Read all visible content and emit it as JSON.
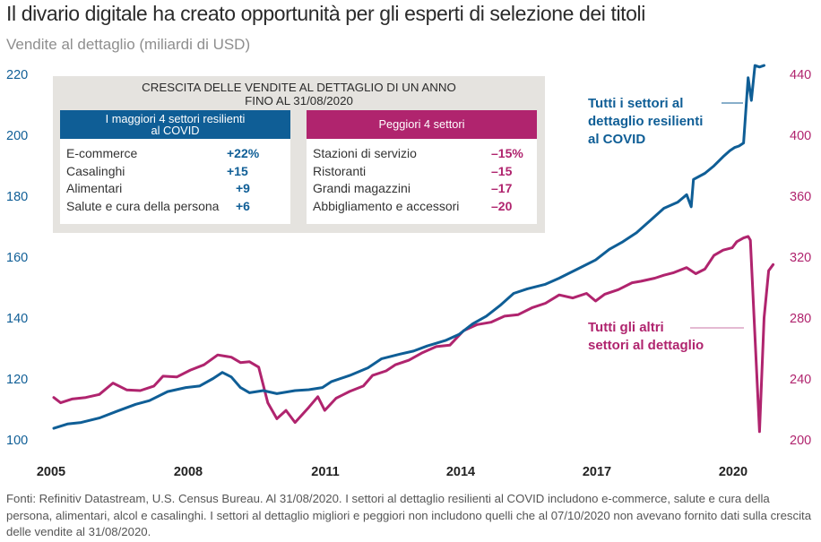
{
  "chart_data": {
    "type": "line",
    "title": "Il divario digitale ha creato opportunità per gli esperti di selezione dei titoli",
    "subtitle": "Vendite al dettaglio (miliardi di USD)",
    "xlabel": "",
    "x_ticks": [
      "2005",
      "2008",
      "2011",
      "2014",
      "2017",
      "2020"
    ],
    "x_range": [
      2005,
      2020.7
    ],
    "y_left": {
      "ticks": [
        "100",
        "120",
        "140",
        "160",
        "180",
        "200",
        "220"
      ],
      "range": [
        100,
        220
      ],
      "color": "#0f5e96"
    },
    "y_right": {
      "ticks": [
        "200",
        "240",
        "280",
        "320",
        "360",
        "400",
        "440"
      ],
      "range": [
        200,
        440
      ],
      "color": "#b0246e"
    },
    "grid": false,
    "series": [
      {
        "name": "Tutti i settori al dettaglio resilienti al COVID",
        "axis": "left",
        "color": "#0f5e96",
        "points": [
          [
            2005.0,
            104.1
          ],
          [
            2005.3,
            105.5
          ],
          [
            2005.6,
            106.0
          ],
          [
            2006.0,
            107.5
          ],
          [
            2006.4,
            109.8
          ],
          [
            2006.8,
            112.0
          ],
          [
            2007.1,
            113.2
          ],
          [
            2007.5,
            116.2
          ],
          [
            2007.9,
            117.5
          ],
          [
            2008.2,
            118.0
          ],
          [
            2008.5,
            120.5
          ],
          [
            2008.7,
            122.5
          ],
          [
            2008.9,
            121.0
          ],
          [
            2009.1,
            117.5
          ],
          [
            2009.3,
            115.8
          ],
          [
            2009.6,
            116.5
          ],
          [
            2009.9,
            115.5
          ],
          [
            2010.3,
            116.5
          ],
          [
            2010.6,
            116.8
          ],
          [
            2010.9,
            117.5
          ],
          [
            2011.1,
            119.5
          ],
          [
            2011.5,
            121.5
          ],
          [
            2011.9,
            124.0
          ],
          [
            2012.2,
            127.0
          ],
          [
            2012.6,
            128.5
          ],
          [
            2012.9,
            129.5
          ],
          [
            2013.2,
            131.2
          ],
          [
            2013.6,
            133.0
          ],
          [
            2013.9,
            135.0
          ],
          [
            2014.2,
            138.5
          ],
          [
            2014.5,
            141.0
          ],
          [
            2014.8,
            144.5
          ],
          [
            2015.1,
            148.5
          ],
          [
            2015.4,
            150.0
          ],
          [
            2015.8,
            151.5
          ],
          [
            2016.1,
            153.5
          ],
          [
            2016.5,
            156.5
          ],
          [
            2016.9,
            159.5
          ],
          [
            2017.2,
            163.0
          ],
          [
            2017.5,
            165.5
          ],
          [
            2017.8,
            168.5
          ],
          [
            2018.1,
            172.5
          ],
          [
            2018.4,
            176.5
          ],
          [
            2018.7,
            178.5
          ],
          [
            2018.9,
            181.0
          ],
          [
            2019.0,
            177.0
          ],
          [
            2019.05,
            186.0
          ],
          [
            2019.3,
            188.0
          ],
          [
            2019.5,
            190.5
          ],
          [
            2019.7,
            193.5
          ],
          [
            2019.85,
            195.5
          ],
          [
            2019.95,
            196.5
          ],
          [
            2020.05,
            197.0
          ],
          [
            2020.15,
            198.0
          ],
          [
            2020.25,
            219.5
          ],
          [
            2020.32,
            212.0
          ],
          [
            2020.4,
            223.5
          ],
          [
            2020.5,
            223.0
          ],
          [
            2020.6,
            223.5
          ]
        ]
      },
      {
        "name": "Tutti gli altri settori al dettaglio",
        "axis": "right",
        "color": "#b0246e",
        "points": [
          [
            2005.0,
            228.5
          ],
          [
            2005.15,
            225.0
          ],
          [
            2005.4,
            227.5
          ],
          [
            2005.7,
            228.5
          ],
          [
            2006.0,
            230.5
          ],
          [
            2006.3,
            238.0
          ],
          [
            2006.6,
            233.5
          ],
          [
            2006.9,
            233.0
          ],
          [
            2007.2,
            236.0
          ],
          [
            2007.4,
            242.5
          ],
          [
            2007.7,
            242.0
          ],
          [
            2008.0,
            246.5
          ],
          [
            2008.3,
            250.0
          ],
          [
            2008.6,
            256.5
          ],
          [
            2008.9,
            255.0
          ],
          [
            2009.1,
            251.5
          ],
          [
            2009.3,
            252.0
          ],
          [
            2009.5,
            248.5
          ],
          [
            2009.7,
            225.0
          ],
          [
            2009.9,
            214.5
          ],
          [
            2010.1,
            220.0
          ],
          [
            2010.3,
            212.0
          ],
          [
            2010.6,
            222.0
          ],
          [
            2010.8,
            229.0
          ],
          [
            2010.95,
            220.0
          ],
          [
            2011.2,
            228.0
          ],
          [
            2011.5,
            232.5
          ],
          [
            2011.8,
            236.0
          ],
          [
            2012.0,
            243.0
          ],
          [
            2012.3,
            246.0
          ],
          [
            2012.5,
            250.0
          ],
          [
            2012.8,
            253.0
          ],
          [
            2013.1,
            258.0
          ],
          [
            2013.4,
            262.0
          ],
          [
            2013.7,
            263.0
          ],
          [
            2014.0,
            272.5
          ],
          [
            2014.3,
            276.5
          ],
          [
            2014.6,
            278.0
          ],
          [
            2014.9,
            282.0
          ],
          [
            2015.2,
            283.0
          ],
          [
            2015.5,
            287.5
          ],
          [
            2015.8,
            290.5
          ],
          [
            2016.1,
            296.0
          ],
          [
            2016.4,
            294.0
          ],
          [
            2016.7,
            297.0
          ],
          [
            2016.9,
            292.0
          ],
          [
            2017.1,
            296.5
          ],
          [
            2017.4,
            299.5
          ],
          [
            2017.7,
            304.0
          ],
          [
            2017.9,
            305.0
          ],
          [
            2018.2,
            307.0
          ],
          [
            2018.4,
            309.0
          ],
          [
            2018.6,
            310.5
          ],
          [
            2018.9,
            314.0
          ],
          [
            2019.1,
            310.0
          ],
          [
            2019.3,
            313.0
          ],
          [
            2019.5,
            322.0
          ],
          [
            2019.7,
            325.5
          ],
          [
            2019.9,
            327.0
          ],
          [
            2020.0,
            331.0
          ],
          [
            2020.15,
            333.5
          ],
          [
            2020.25,
            334.5
          ],
          [
            2020.3,
            332.0
          ],
          [
            2020.5,
            206.0
          ],
          [
            2020.6,
            281.0
          ],
          [
            2020.7,
            312.0
          ],
          [
            2020.8,
            316.0
          ]
        ]
      }
    ],
    "annotations": [
      {
        "text": "Tutti i settori al dettaglio resilienti al COVID",
        "series": 0
      },
      {
        "text": "Tutti gli altri settori al dettaglio",
        "series": 1
      }
    ],
    "legend": "inline-annotations"
  },
  "table": {
    "title_line1": "CRESCITA DELLE VENDITE AL DETTAGLIO DI UN ANNO",
    "title_line2": "FINO AL 31/08/2020",
    "best": {
      "header_line1": "I maggiori 4 settori resilienti",
      "header_line2": "al COVID",
      "color": "#0f5e96",
      "rows": [
        {
          "label": "E-commerce",
          "value": "+22%"
        },
        {
          "label": "Casalinghi",
          "value": "+15"
        },
        {
          "label": "Alimentari",
          "value": "+9"
        },
        {
          "label": "Salute e cura della persona",
          "value": "+6"
        }
      ]
    },
    "worst": {
      "header_line1": "Peggiori 4 settori",
      "color": "#b0246e",
      "rows": [
        {
          "label": "Stazioni di servizio",
          "value": "–15%"
        },
        {
          "label": "Ristoranti",
          "value": "–15"
        },
        {
          "label": "Grandi magazzini",
          "value": "–17"
        },
        {
          "label": "Abbigliamento e accessori",
          "value": "–20"
        }
      ]
    }
  },
  "annot": {
    "blue_l1": "Tutti i settori al",
    "blue_l2": "dettaglio resilienti",
    "blue_l3": "al COVID",
    "mag_l1": "Tutti gli altri",
    "mag_l2": "settori al dettaglio"
  },
  "footer": "Fonti: Refinitiv Datastream, U.S. Census Bureau. Al 31/08/2020. I settori al dettaglio resilienti al COVID includono e-commerce, salute e cura della persona, alimentari, alcol e casalinghi. I settori al dettaglio migliori e peggiori non includono quelli che al 07/10/2020 non avevano fornito dati sulla crescita delle vendite al 31/08/2020."
}
